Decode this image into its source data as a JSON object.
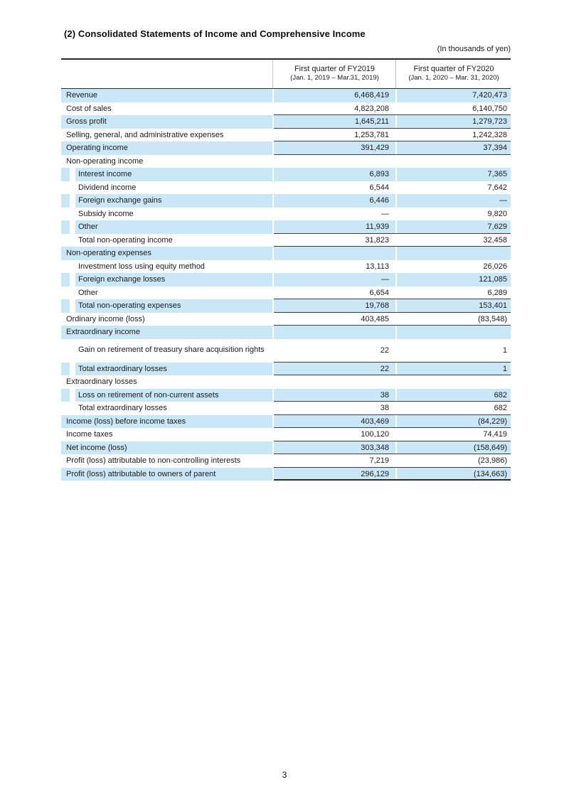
{
  "colors": {
    "stripe": "#c9e7f6",
    "rule": "#2b2b2b",
    "row_line": "#3d3d3d"
  },
  "page": {
    "title": "(2) Consolidated Statements of Income and Comprehensive Income",
    "unit_note": "(In thousands of yen)",
    "page_number": "3"
  },
  "table": {
    "columns": [
      {
        "label": "First quarter of FY2019",
        "sublabel": "(Jan. 1, 2019 – Mar.31, 2019)"
      },
      {
        "label": "First quarter of FY2020",
        "sublabel": "(Jan. 1, 2020 – Mar. 31, 2020)"
      }
    ],
    "rows": [
      {
        "label": "Revenue",
        "fy2019": "6,468,419",
        "fy2020": "7,420,473",
        "indent": false,
        "shaded": true,
        "border": "none",
        "tall": false
      },
      {
        "label": "Cost of sales",
        "fy2019": "4,823,208",
        "fy2020": "6,140,750",
        "indent": false,
        "shaded": false,
        "border": "line",
        "tall": false
      },
      {
        "label": "Gross profit",
        "fy2019": "1,645,211",
        "fy2020": "1,279,723",
        "indent": false,
        "shaded": true,
        "border": "line",
        "tall": false
      },
      {
        "label": "Selling, general, and administrative expenses",
        "fy2019": "1,253,781",
        "fy2020": "1,242,328",
        "indent": false,
        "shaded": false,
        "border": "line",
        "tall": false
      },
      {
        "label": "Operating income",
        "fy2019": "391,429",
        "fy2020": "37,394",
        "indent": false,
        "shaded": true,
        "border": "line",
        "tall": false
      },
      {
        "label": "Non-operating income",
        "fy2019": "",
        "fy2020": "",
        "indent": false,
        "shaded": false,
        "border": "none",
        "tall": false
      },
      {
        "label": "Interest income",
        "fy2019": "6,893",
        "fy2020": "7,365",
        "indent": true,
        "shaded": true,
        "border": "none",
        "tall": false
      },
      {
        "label": "Dividend income",
        "fy2019": "6,544",
        "fy2020": "7,642",
        "indent": true,
        "shaded": false,
        "border": "none",
        "tall": false
      },
      {
        "label": "Foreign exchange gains",
        "fy2019": "6,446",
        "fy2020": "—",
        "indent": true,
        "shaded": true,
        "border": "none",
        "tall": false
      },
      {
        "label": "Subsidy income",
        "fy2019": "—",
        "fy2020": "9,820",
        "indent": true,
        "shaded": false,
        "border": "none",
        "tall": false
      },
      {
        "label": "Other",
        "fy2019": "11,939",
        "fy2020": "7,629",
        "indent": true,
        "shaded": true,
        "border": "line",
        "tall": false
      },
      {
        "label": "Total non-operating income",
        "fy2019": "31,823",
        "fy2020": "32,458",
        "indent": true,
        "shaded": false,
        "border": "line",
        "tall": false
      },
      {
        "label": "Non-operating expenses",
        "fy2019": "",
        "fy2020": "",
        "indent": false,
        "shaded": true,
        "border": "none",
        "tall": false
      },
      {
        "label": "Investment loss using equity method",
        "fy2019": "13,113",
        "fy2020": "26,026",
        "indent": true,
        "shaded": false,
        "border": "none",
        "tall": false
      },
      {
        "label": "Foreign exchange losses",
        "fy2019": "—",
        "fy2020": "121,085",
        "indent": true,
        "shaded": true,
        "border": "none",
        "tall": false
      },
      {
        "label": "Other",
        "fy2019": "6,654",
        "fy2020": "6,289",
        "indent": true,
        "shaded": false,
        "border": "line",
        "tall": false
      },
      {
        "label": "Total non-operating expenses",
        "fy2019": "19,768",
        "fy2020": "153,401",
        "indent": true,
        "shaded": true,
        "border": "line",
        "tall": false
      },
      {
        "label": "Ordinary income (loss)",
        "fy2019": "403,485",
        "fy2020": "(83,548)",
        "indent": false,
        "shaded": false,
        "border": "line",
        "tall": false
      },
      {
        "label": "Extraordinary income",
        "fy2019": "",
        "fy2020": "",
        "indent": false,
        "shaded": true,
        "border": "none",
        "tall": false
      },
      {
        "label": "Gain on retirement of treasury share acquisition rights",
        "fy2019": "22",
        "fy2020": "1",
        "indent": true,
        "shaded": false,
        "border": "line",
        "tall": true
      },
      {
        "label": "Total extraordinary losses",
        "fy2019": "22",
        "fy2020": "1",
        "indent": true,
        "shaded": true,
        "border": "line",
        "tall": false
      },
      {
        "label": "Extraordinary losses",
        "fy2019": "",
        "fy2020": "",
        "indent": false,
        "shaded": false,
        "border": "none",
        "tall": false
      },
      {
        "label": "Loss on retirement of non-current assets",
        "fy2019": "38",
        "fy2020": "682",
        "indent": true,
        "shaded": true,
        "border": "line",
        "tall": false
      },
      {
        "label": "Total extraordinary losses",
        "fy2019": "38",
        "fy2020": "682",
        "indent": true,
        "shaded": false,
        "border": "line",
        "tall": false
      },
      {
        "label": "Income (loss) before income taxes",
        "fy2019": "403,469",
        "fy2020": "(84,229)",
        "indent": false,
        "shaded": true,
        "border": "line",
        "tall": false
      },
      {
        "label": "Income taxes",
        "fy2019": "100,120",
        "fy2020": "74,419",
        "indent": false,
        "shaded": false,
        "border": "line",
        "tall": false
      },
      {
        "label": "Net income (loss)",
        "fy2019": "303,348",
        "fy2020": "(158,649)",
        "indent": false,
        "shaded": true,
        "border": "line",
        "tall": false
      },
      {
        "label": "Profit (loss) attributable to non-controlling interests",
        "fy2019": "7,219",
        "fy2020": "(23,986)",
        "indent": false,
        "shaded": false,
        "border": "line",
        "tall": false
      },
      {
        "label": "Profit (loss) attributable to owners of parent",
        "fy2019": "296,129",
        "fy2020": "(134,663)",
        "indent": false,
        "shaded": true,
        "border": "thick",
        "tall": false
      }
    ]
  }
}
